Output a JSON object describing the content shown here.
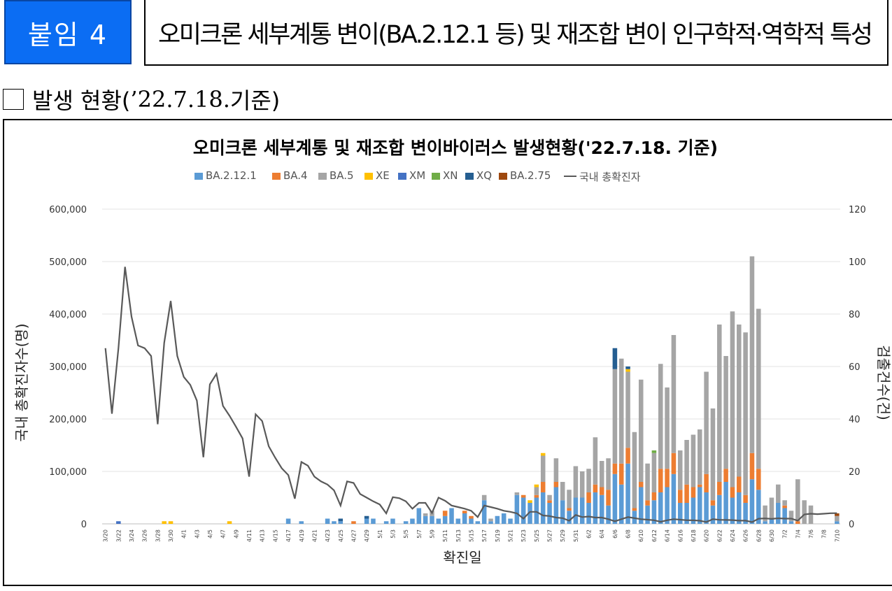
{
  "header": {
    "badge": "붙임 4",
    "title": "오미크론 세부계통 변이(BA.2.12.1 등) 및 재조합 변이 인구학적·역학적 특성"
  },
  "status": {
    "label": "발생 현황(",
    "date": "’22.7.18.",
    "suffix": " 기준)"
  },
  "chart_data": {
    "type": "bar",
    "subtype": "stacked bar + line (dual axis)",
    "title": "오미크론 세부계통 및 재조합 변이바이러스 발생현황('22.7.18. 기준)",
    "xlabel": "확진일",
    "ylabel_left": "국내 총확진자수(명)",
    "ylabel_right": "검출건수(건)",
    "y_left_ticks": [
      "600,000",
      "500,000",
      "400,000",
      "300,000",
      "200,000",
      "100,000",
      "0"
    ],
    "y_right_ticks": [
      "120",
      "100",
      "80",
      "60",
      "40",
      "20",
      "0"
    ],
    "ylim_left": [
      0,
      600000
    ],
    "ylim_right": [
      0,
      120
    ],
    "legend_placement": "top-center",
    "grid": "horizontal",
    "start_date": "3/20",
    "x_tick_labels": [
      "3/20",
      "3/22",
      "3/24",
      "3/26",
      "3/28",
      "3/30",
      "4/1",
      "4/3",
      "4/5",
      "4/7",
      "4/9",
      "4/11",
      "4/13",
      "4/15",
      "4/17",
      "4/19",
      "4/21",
      "4/23",
      "4/25",
      "4/27",
      "4/29",
      "5/1",
      "5/3",
      "5/5",
      "5/7",
      "5/9",
      "5/11",
      "5/13",
      "5/15",
      "5/17",
      "5/19",
      "5/21",
      "5/23",
      "5/25",
      "5/27",
      "5/29",
      "5/31",
      "6/2",
      "6/4",
      "6/6",
      "6/8",
      "6/10",
      "6/12",
      "6/14",
      "6/16",
      "6/18",
      "6/20",
      "6/22",
      "6/24",
      "6/26",
      "6/28",
      "6/30",
      "7/2",
      "7/4",
      "7/6",
      "7/8",
      "7/10"
    ],
    "series": [
      {
        "name": "BA.2.12.1",
        "color": "#5b9bd5",
        "values": [
          0,
          0,
          0,
          0,
          0,
          0,
          0,
          0,
          0,
          0,
          0,
          0,
          0,
          0,
          0,
          0,
          0,
          0,
          0,
          0,
          0,
          0,
          0,
          0,
          0,
          0,
          0,
          0,
          0,
          0,
          0,
          0,
          0,
          0,
          0,
          0,
          0,
          0,
          0,
          0,
          0,
          0,
          0,
          0,
          0,
          0,
          0,
          0,
          0,
          0,
          0,
          0,
          0,
          0,
          0,
          0,
          0,
          0,
          0,
          0,
          0,
          0,
          0,
          0,
          0,
          0,
          0,
          0,
          0,
          0,
          0,
          0,
          0,
          0,
          0,
          0,
          0,
          0,
          0,
          0,
          0,
          0,
          0,
          0,
          0,
          0,
          0,
          0,
          0,
          0,
          0,
          0,
          0,
          0,
          0,
          0,
          0,
          0,
          0,
          0,
          0,
          0,
          0,
          0,
          0,
          0,
          0,
          0,
          0,
          0,
          0,
          0,
          0,
          0,
          0,
          0,
          0,
          0,
          0,
          0
        ]
      },
      {
        "name": "BA.4",
        "color": "#ed7d31",
        "values": []
      },
      {
        "name": "BA.5",
        "color": "#a5a5a5",
        "values": []
      },
      {
        "name": "XE",
        "color": "#ffc000",
        "values": []
      },
      {
        "name": "XM",
        "color": "#4472c4",
        "values": []
      },
      {
        "name": "XN",
        "color": "#70ad47",
        "values": []
      },
      {
        "name": "XQ",
        "color": "#255e91",
        "values": []
      },
      {
        "name": "BA.2.75",
        "color": "#9e480e",
        "values": []
      }
    ],
    "line": {
      "name": "국내 총확진자",
      "color": "#595959",
      "values": []
    }
  }
}
